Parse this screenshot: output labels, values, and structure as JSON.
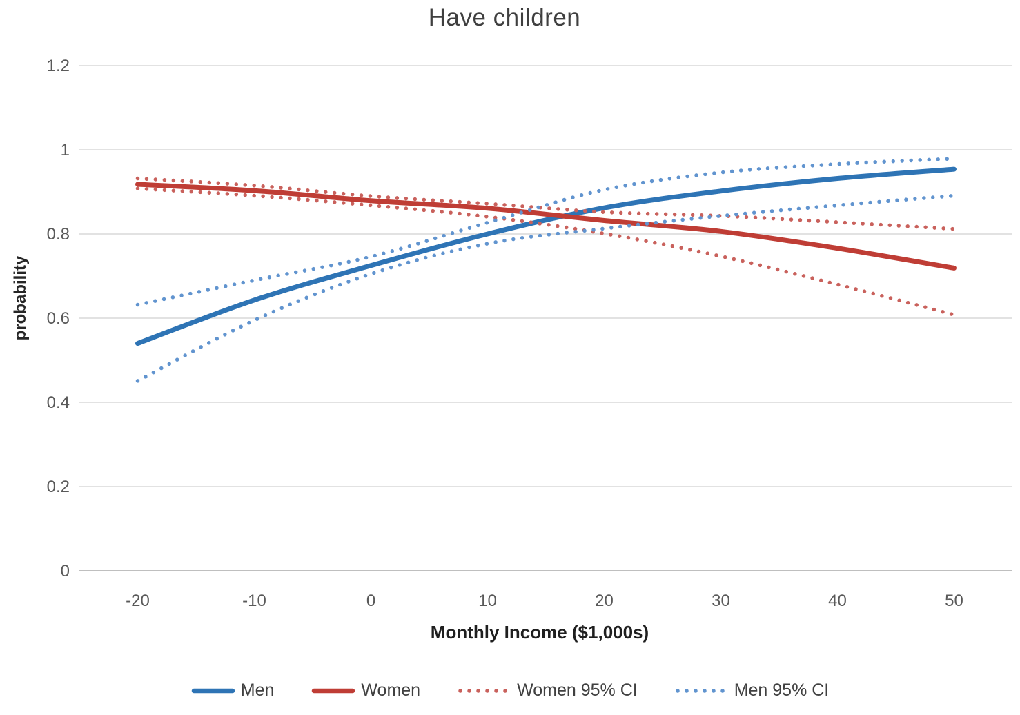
{
  "title": "Have children",
  "axes": {
    "x": {
      "label": "Monthly Income ($1,000s)",
      "min": -25,
      "max": 55,
      "tick_values": [
        -20,
        -10,
        0,
        10,
        20,
        30,
        40,
        50
      ],
      "tick_labels": [
        "-20",
        "-10",
        "0",
        "10",
        "20",
        "30",
        "40",
        "50"
      ]
    },
    "y": {
      "label": "probability",
      "min": 0,
      "max": 1.2,
      "tick_values": [
        0,
        0.2,
        0.4,
        0.6,
        0.8,
        1,
        1.2
      ],
      "tick_labels": [
        "0",
        "0.2",
        "0.4",
        "0.6",
        "0.8",
        "1",
        "1.2"
      ]
    }
  },
  "chart_data": {
    "type": "line",
    "title": "Have children",
    "xlabel": "Monthly Income ($1,000s)",
    "ylabel": "probability",
    "xlim": [
      -25,
      55
    ],
    "ylim": [
      0,
      1.2
    ],
    "grid": "horizontal-only",
    "legend_position": "bottom",
    "x": [
      -20,
      -10,
      0,
      10,
      20,
      30,
      40,
      50
    ],
    "series": [
      {
        "name": "Men",
        "style": "solid",
        "color": "#2e74b5",
        "values": [
          0.54,
          0.643,
          0.725,
          0.8,
          0.862,
          0.902,
          0.932,
          0.954
        ]
      },
      {
        "name": "Women",
        "style": "solid",
        "color": "#bf3d35",
        "values": [
          0.918,
          0.903,
          0.879,
          0.861,
          0.832,
          0.806,
          0.766,
          0.719
        ]
      },
      {
        "name": "Women 95% CI",
        "style": "dotted",
        "color": "#c9615c",
        "upper": [
          0.932,
          0.915,
          0.89,
          0.872,
          0.852,
          0.843,
          0.828,
          0.812
        ],
        "lower": [
          0.908,
          0.891,
          0.868,
          0.841,
          0.801,
          0.747,
          0.68,
          0.608
        ]
      },
      {
        "name": "Men 95% CI",
        "style": "dotted",
        "color": "#6194cf",
        "upper": [
          0.632,
          0.69,
          0.746,
          0.827,
          0.905,
          0.946,
          0.966,
          0.979
        ],
        "lower": [
          0.451,
          0.595,
          0.705,
          0.777,
          0.813,
          0.843,
          0.868,
          0.891
        ]
      }
    ]
  },
  "legend": {
    "items": [
      {
        "label": "Men",
        "style": "solid",
        "color": "#2e74b5"
      },
      {
        "label": "Women",
        "style": "solid",
        "color": "#bf3d35"
      },
      {
        "label": "Women 95% CI",
        "style": "dotted",
        "color": "#c9615c"
      },
      {
        "label": "Men 95% CI",
        "style": "dotted",
        "color": "#6194cf"
      }
    ]
  },
  "style_colors": {
    "gridline": "#d9d9d9",
    "axis_line": "#bfbfbf",
    "tick_text": "#595959",
    "title_text": "#3f3f3f"
  }
}
